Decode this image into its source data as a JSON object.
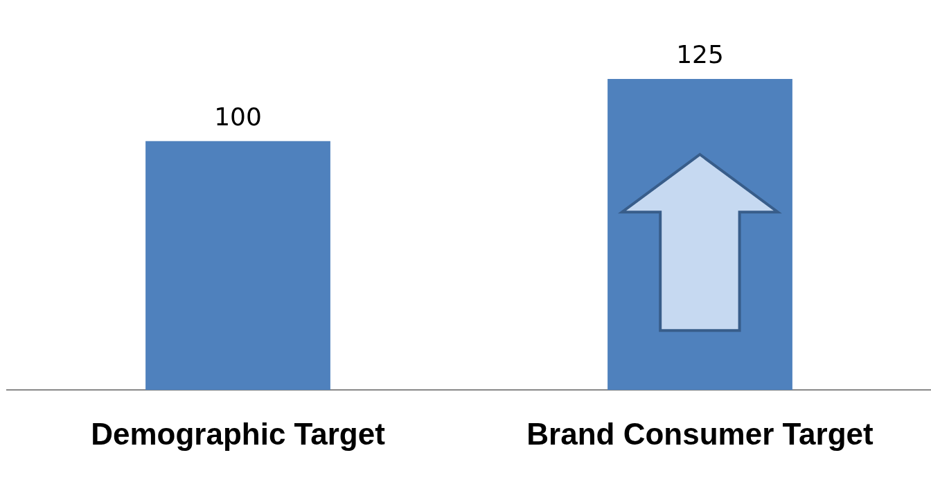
{
  "chart_data": {
    "type": "bar",
    "categories": [
      "Demographic Target",
      "Brand Consumer Target"
    ],
    "values": [
      100,
      125
    ],
    "color": "#4f81bd",
    "data_labels": true,
    "grid": false,
    "legend": false
  }
}
